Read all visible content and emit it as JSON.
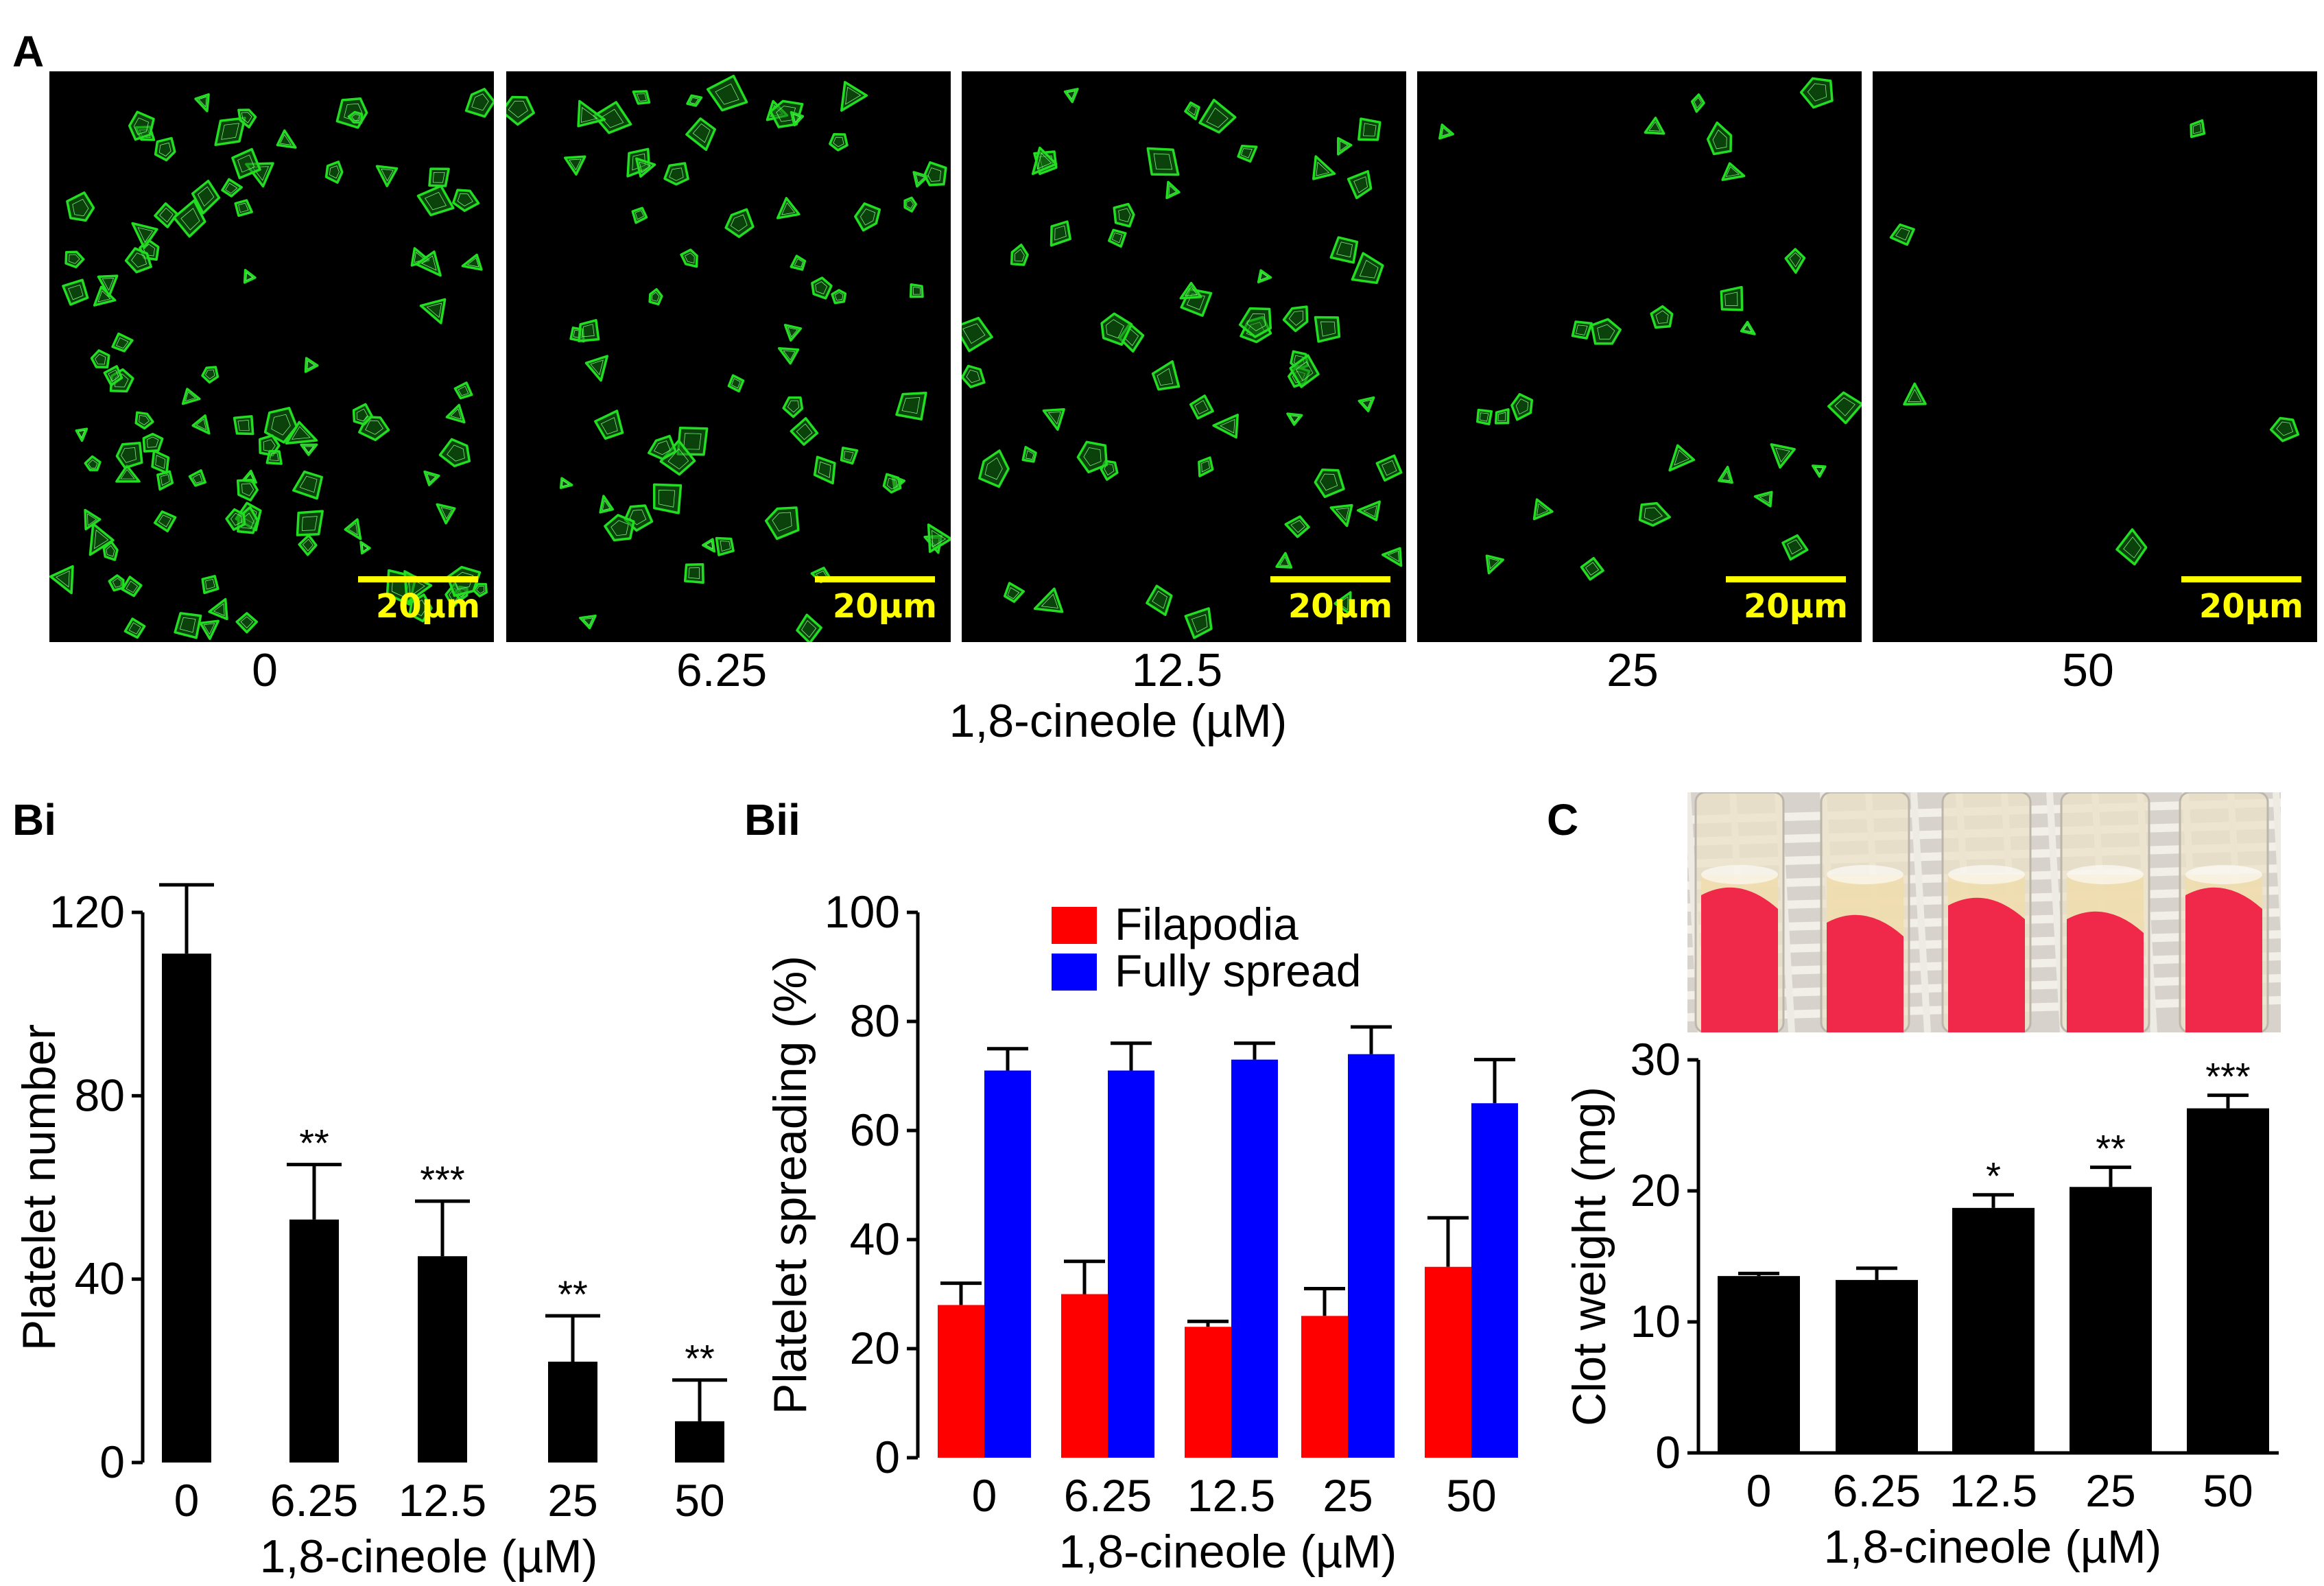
{
  "panels": {
    "A": {
      "letter": "A",
      "scale_label": "20µm",
      "concentrations": [
        "0",
        "6.25",
        "12.5",
        "25",
        "50"
      ],
      "xlabel": "1,8-cineole (µM)",
      "cell_density": [
        95,
        60,
        55,
        26,
        5
      ],
      "colors": {
        "cell": "#22dd22",
        "background": "#000000",
        "scalebar": "#ffff00"
      }
    },
    "C": {
      "letter": "C",
      "photo_icon": "clot-tubes-photo"
    }
  },
  "chart_data": [
    {
      "id": "Bi",
      "type": "bar",
      "letter": "Bi",
      "categories": [
        "0",
        "6.25",
        "12.5",
        "25",
        "50"
      ],
      "values": [
        111,
        53,
        45,
        22,
        9
      ],
      "errors": [
        15,
        12,
        12,
        10,
        9
      ],
      "significance": [
        "",
        "**",
        "***",
        "**",
        "**"
      ],
      "xlabel": "1,8-cineole (µM)",
      "ylabel": "Platelet number",
      "ylim": [
        0,
        120
      ],
      "yticks": [
        "0",
        "40",
        "80",
        "120"
      ],
      "color": "#000000"
    },
    {
      "id": "Bii",
      "type": "bar",
      "letter": "Bii",
      "categories": [
        "0",
        "6.25",
        "12.5",
        "25",
        "50"
      ],
      "series": [
        {
          "name": "Filapodia",
          "values": [
            28,
            30,
            24,
            26,
            35
          ],
          "errors": [
            4,
            6,
            1,
            5,
            9
          ],
          "color": "#ff0000"
        },
        {
          "name": "Fully spread",
          "values": [
            71,
            71,
            73,
            74,
            65
          ],
          "errors": [
            4,
            5,
            3,
            5,
            8
          ],
          "color": "#0000ff"
        }
      ],
      "xlabel": "1,8-cineole (µM)",
      "ylabel": "Platelet spreading (%)",
      "ylim": [
        0,
        100
      ],
      "yticks": [
        "0",
        "20",
        "40",
        "60",
        "80",
        "100"
      ],
      "legend": "top-right"
    },
    {
      "id": "C",
      "type": "bar",
      "categories": [
        "0",
        "6.25",
        "12.5",
        "25",
        "50"
      ],
      "values": [
        13.5,
        13.2,
        18.7,
        20.3,
        26.3
      ],
      "errors": [
        0.2,
        0.9,
        1.0,
        1.5,
        1.0
      ],
      "significance": [
        "",
        "",
        "*",
        "**",
        "***"
      ],
      "xlabel": "1,8-cineole (µM)",
      "ylabel": "Clot weight (mg)",
      "ylim": [
        0,
        30
      ],
      "yticks": [
        "0",
        "10",
        "20",
        "30"
      ],
      "color": "#000000"
    }
  ]
}
